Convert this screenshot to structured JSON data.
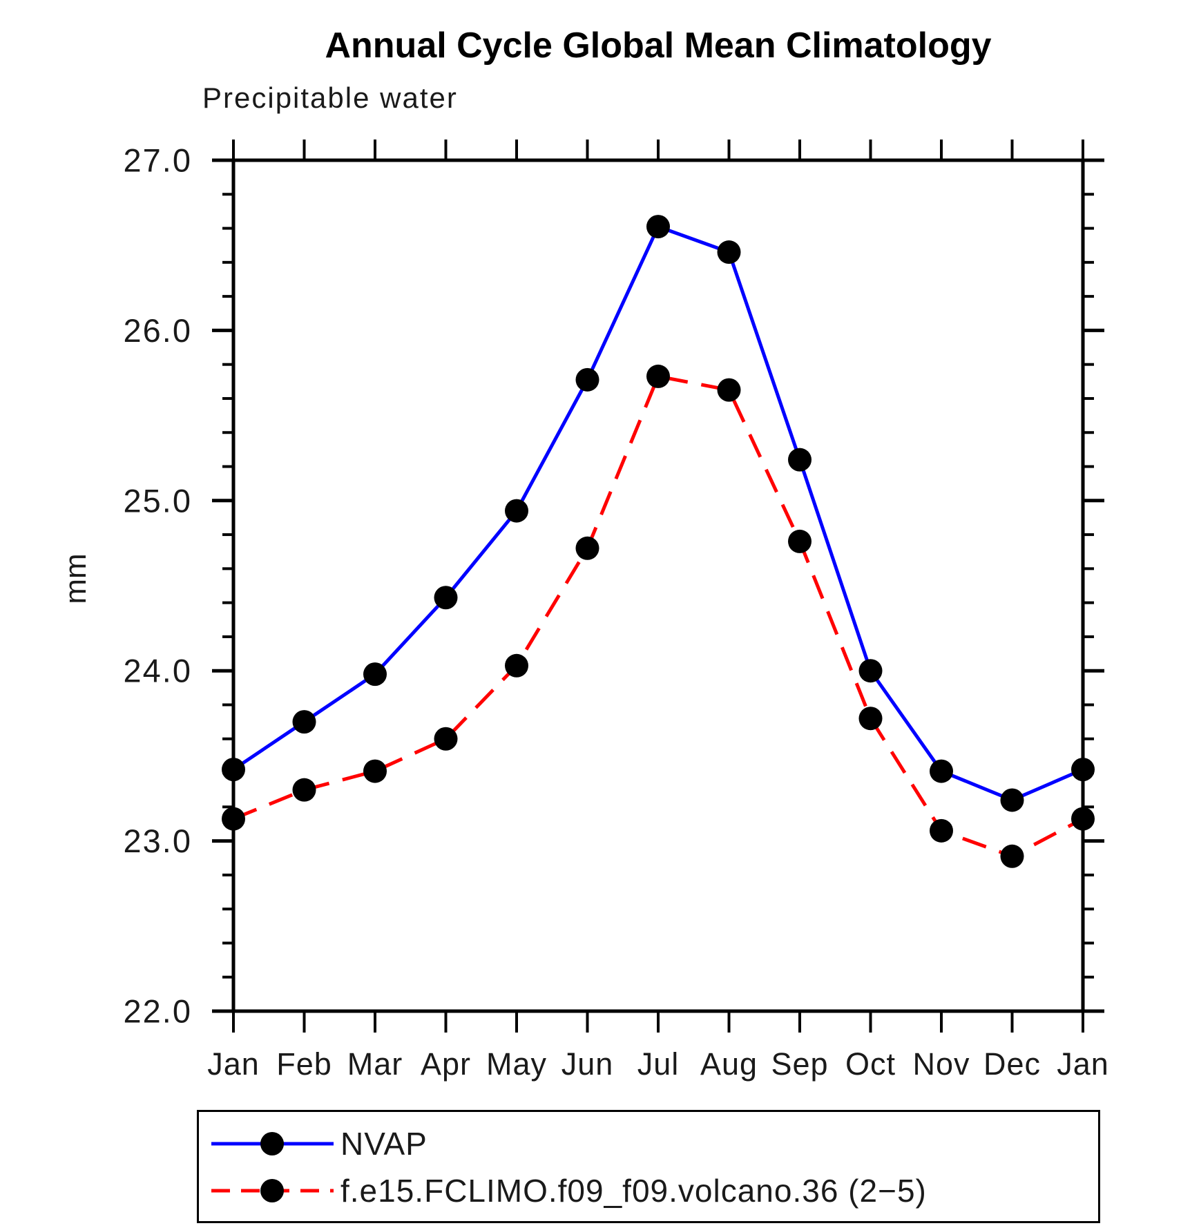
{
  "chart_data": {
    "type": "line",
    "title": "Annual Cycle Global Mean Climatology",
    "subtitle": "Precipitable water",
    "ylabel": "mm",
    "xlabel": "",
    "categories": [
      "Jan",
      "Feb",
      "Mar",
      "Apr",
      "May",
      "Jun",
      "Jul",
      "Aug",
      "Sep",
      "Oct",
      "Nov",
      "Dec",
      "Jan"
    ],
    "ylim": [
      22.0,
      27.0
    ],
    "y_major_ticks": [
      22.0,
      23.0,
      24.0,
      25.0,
      26.0,
      27.0
    ],
    "y_major_tick_labels": [
      "22.0",
      "23.0",
      "24.0",
      "25.0",
      "26.0",
      "27.0"
    ],
    "y_minor_step": 0.2,
    "grid": false,
    "legend_position": "bottom",
    "series": [
      {
        "name": "NVAP",
        "color": "#0000ff",
        "line_style": "solid",
        "marker": "circle",
        "marker_color": "#000000",
        "values": [
          23.42,
          23.7,
          23.98,
          24.43,
          24.94,
          25.71,
          26.61,
          26.46,
          25.24,
          24.0,
          23.41,
          23.24,
          23.42
        ]
      },
      {
        "name": "f.e15.FCLIMO.f09_f09.volcano.36 (2−5)",
        "color": "#ff0000",
        "line_style": "dashed",
        "marker": "circle",
        "marker_color": "#000000",
        "values": [
          23.13,
          23.3,
          23.41,
          23.6,
          24.03,
          24.72,
          25.73,
          25.65,
          24.76,
          23.72,
          23.06,
          22.91,
          23.13
        ]
      }
    ]
  },
  "colors": {
    "axis": "#000000",
    "tick_text": "#1a1a1a",
    "background": "#ffffff"
  }
}
